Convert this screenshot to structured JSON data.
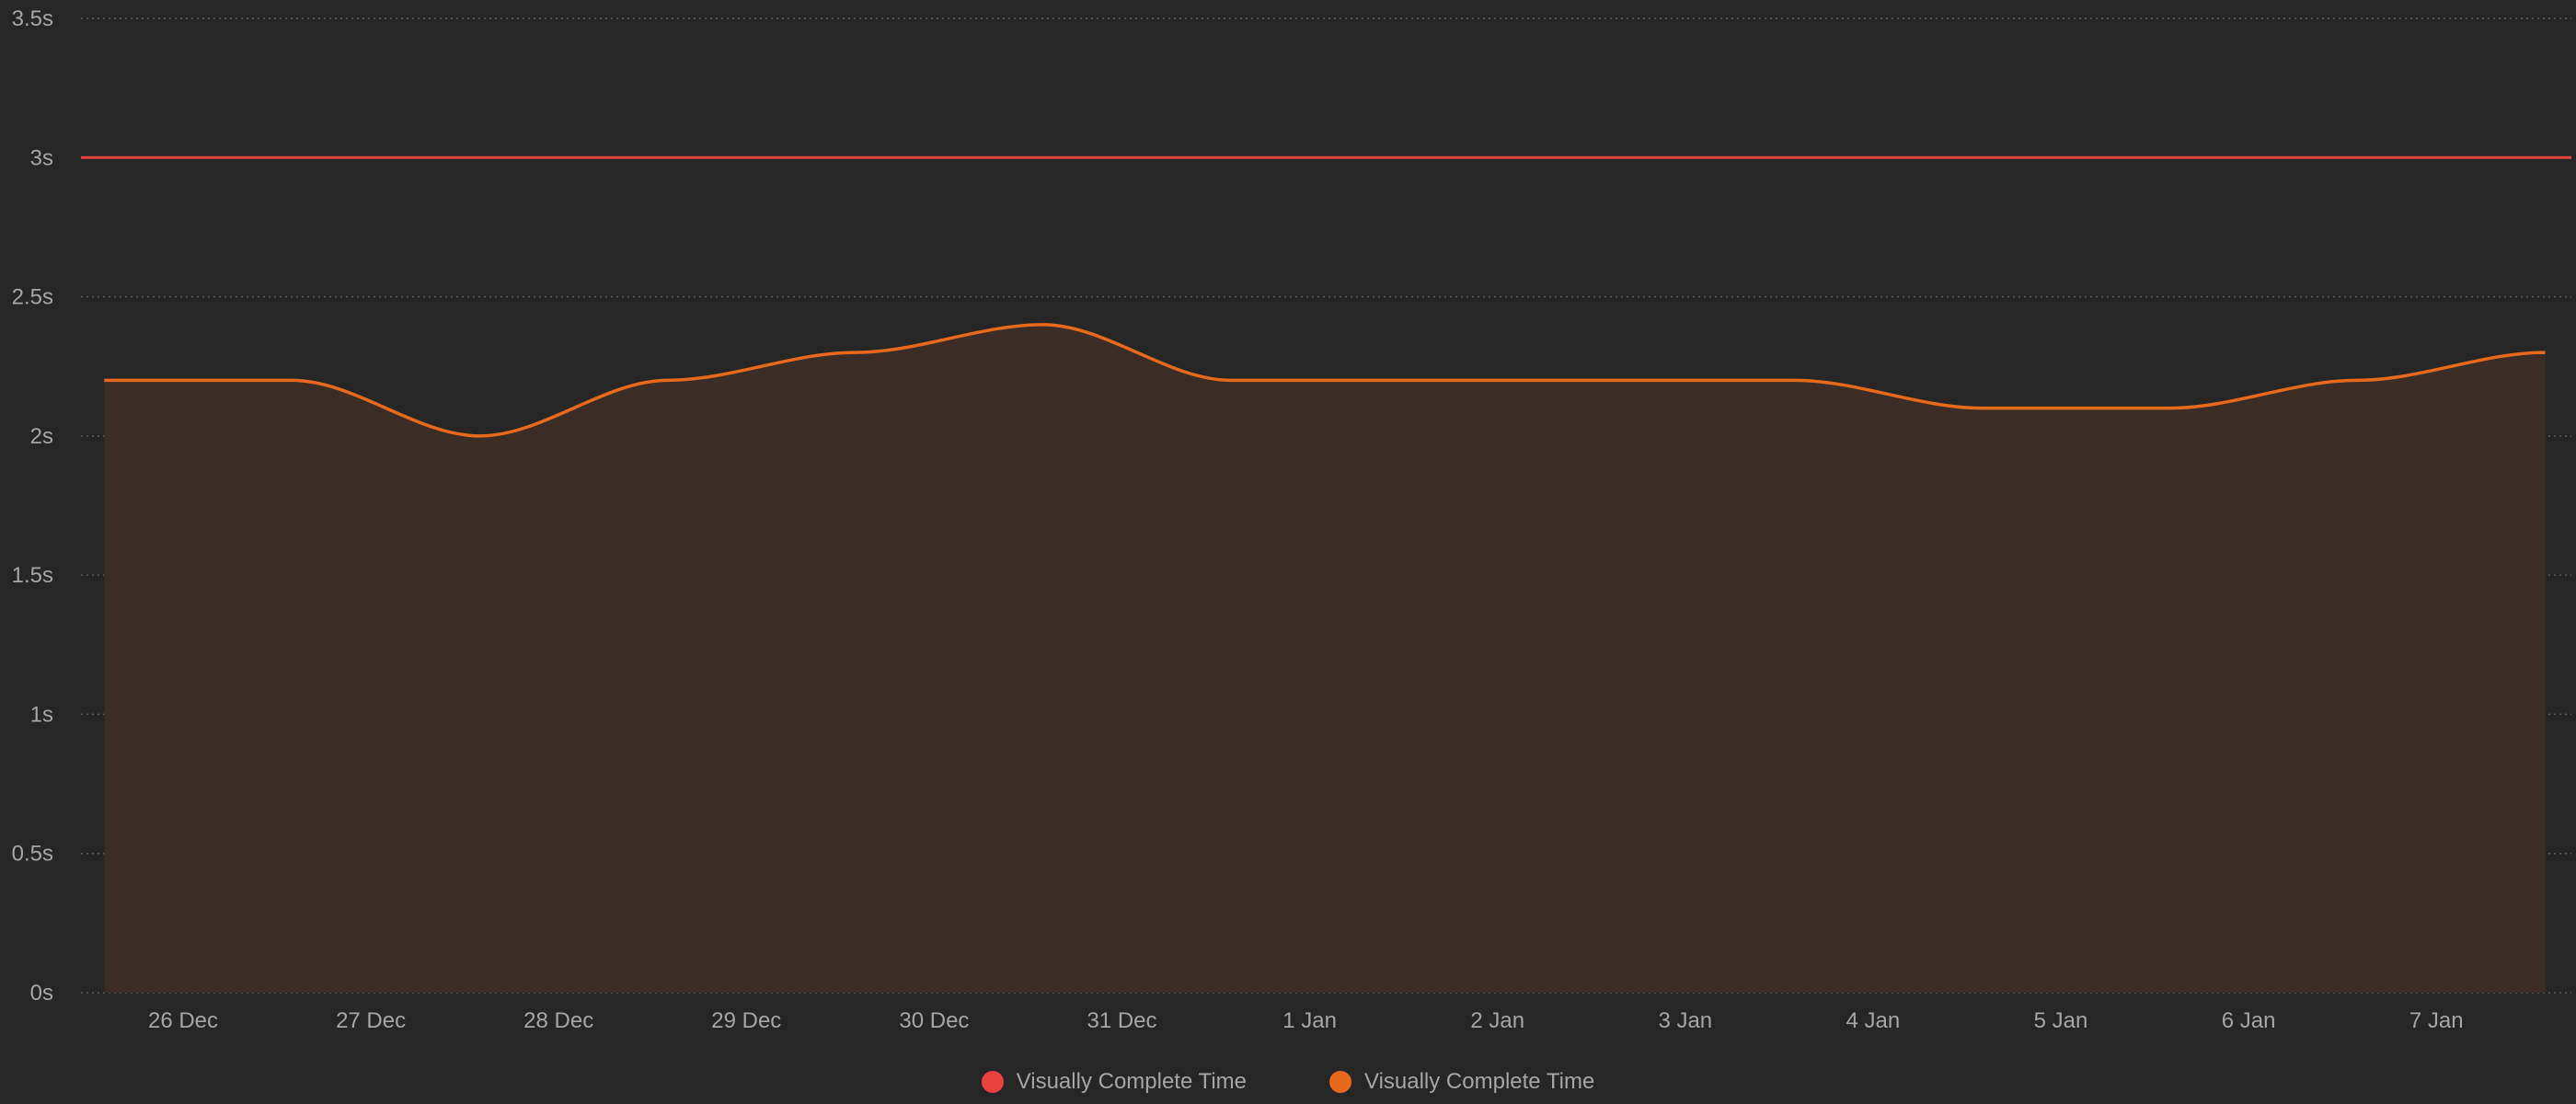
{
  "chart_data": {
    "type": "area",
    "y_axis": {
      "ticks": [
        0,
        0.5,
        1,
        1.5,
        2,
        2.5,
        3,
        3.5
      ],
      "tick_labels": [
        "0s",
        "0.5s",
        "1s",
        "1.5s",
        "2s",
        "2.5s",
        "3s",
        "3.5s"
      ],
      "ylim": [
        0,
        3.5
      ],
      "grid": true
    },
    "categories": [
      "26 Dec",
      "27 Dec",
      "28 Dec",
      "29 Dec",
      "30 Dec",
      "31 Dec",
      "1 Jan",
      "2 Jan",
      "3 Jan",
      "4 Jan",
      "5 Jan",
      "6 Jan",
      "7 Jan"
    ],
    "series": [
      {
        "name": "Visually Complete Time",
        "kind": "threshold-line",
        "color": "#e8413e",
        "value": 3
      },
      {
        "name": "Visually Complete Time",
        "kind": "area",
        "color": "#e8691c",
        "fill": "#3b2d25",
        "x": [
          "25.6 Dec",
          "26.6 Dec",
          "27.6 Dec",
          "28.6 Dec",
          "29.6 Dec",
          "30.6 Dec",
          "31.6 Dec",
          "1.6 Jan",
          "2.6 Jan",
          "3.6 Jan",
          "4.6 Jan",
          "5.6 Jan",
          "6.6 Jan",
          "7.6 Jan"
        ],
        "values": [
          2.2,
          2.2,
          2.0,
          2.2,
          2.3,
          2.4,
          2.2,
          2.2,
          2.2,
          2.2,
          2.1,
          2.1,
          2.2,
          2.3
        ]
      }
    ],
    "legend_placement": "bottom-center"
  },
  "legend": {
    "items": [
      {
        "label": "Visually Complete Time",
        "color": "#e8413e"
      },
      {
        "label": "Visually Complete Time",
        "color": "#e8691c"
      }
    ]
  }
}
